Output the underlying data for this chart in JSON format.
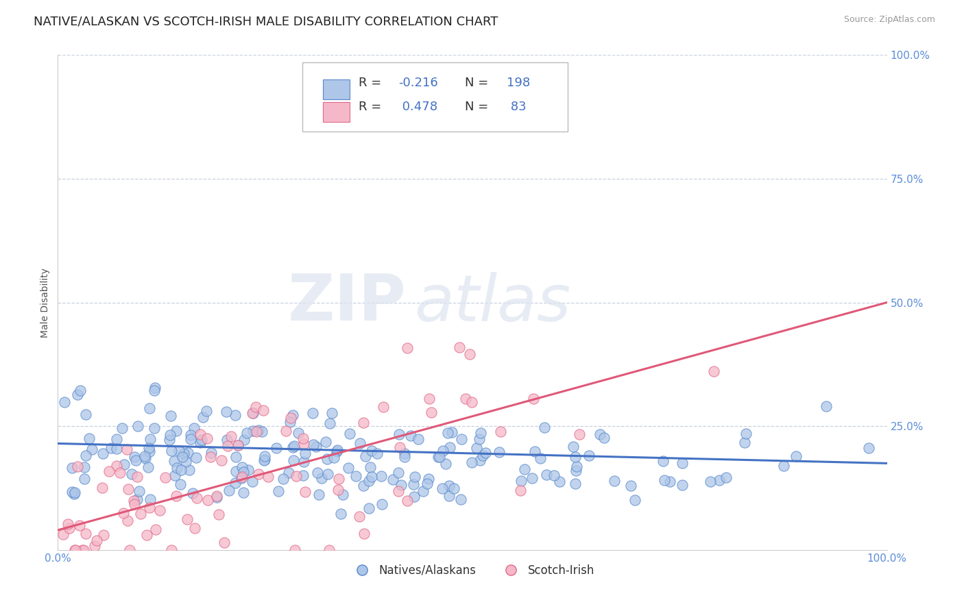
{
  "title": "NATIVE/ALASKAN VS SCOTCH-IRISH MALE DISABILITY CORRELATION CHART",
  "source": "Source: ZipAtlas.com",
  "ylabel": "Male Disability",
  "x_min": 0.0,
  "x_max": 1.0,
  "y_min": 0.0,
  "y_max": 1.0,
  "x_tick_vals": [
    0.0,
    1.0
  ],
  "x_tick_labels": [
    "0.0%",
    "100.0%"
  ],
  "y_tick_vals": [
    0.25,
    0.5,
    0.75,
    1.0
  ],
  "y_tick_labels": [
    "25.0%",
    "50.0%",
    "75.0%",
    "100.0%"
  ],
  "blue_R": -0.216,
  "blue_N": 198,
  "pink_R": 0.478,
  "pink_N": 83,
  "blue_color": "#aec6e8",
  "pink_color": "#f5b8c8",
  "blue_edge_color": "#5588cc",
  "pink_edge_color": "#e06888",
  "blue_line_color": "#4472c4",
  "pink_line_color": "#e05878",
  "legend_label_blue": "Natives/Alaskans",
  "legend_label_pink": "Scotch-Irish",
  "watermark_zip": "ZIP",
  "watermark_atlas": "atlas",
  "title_fontsize": 13,
  "tick_color": "#5b8dd9",
  "grid_color": "#c8d0e0",
  "background_color": "#ffffff",
  "blue_scatter_seed": 42,
  "pink_scatter_seed": 7,
  "blue_line_x0": 0.0,
  "blue_line_y0": 0.215,
  "blue_line_x1": 1.0,
  "blue_line_y1": 0.175,
  "pink_line_x0": 0.0,
  "pink_line_y0": 0.04,
  "pink_line_x1": 1.0,
  "pink_line_y1": 0.5
}
